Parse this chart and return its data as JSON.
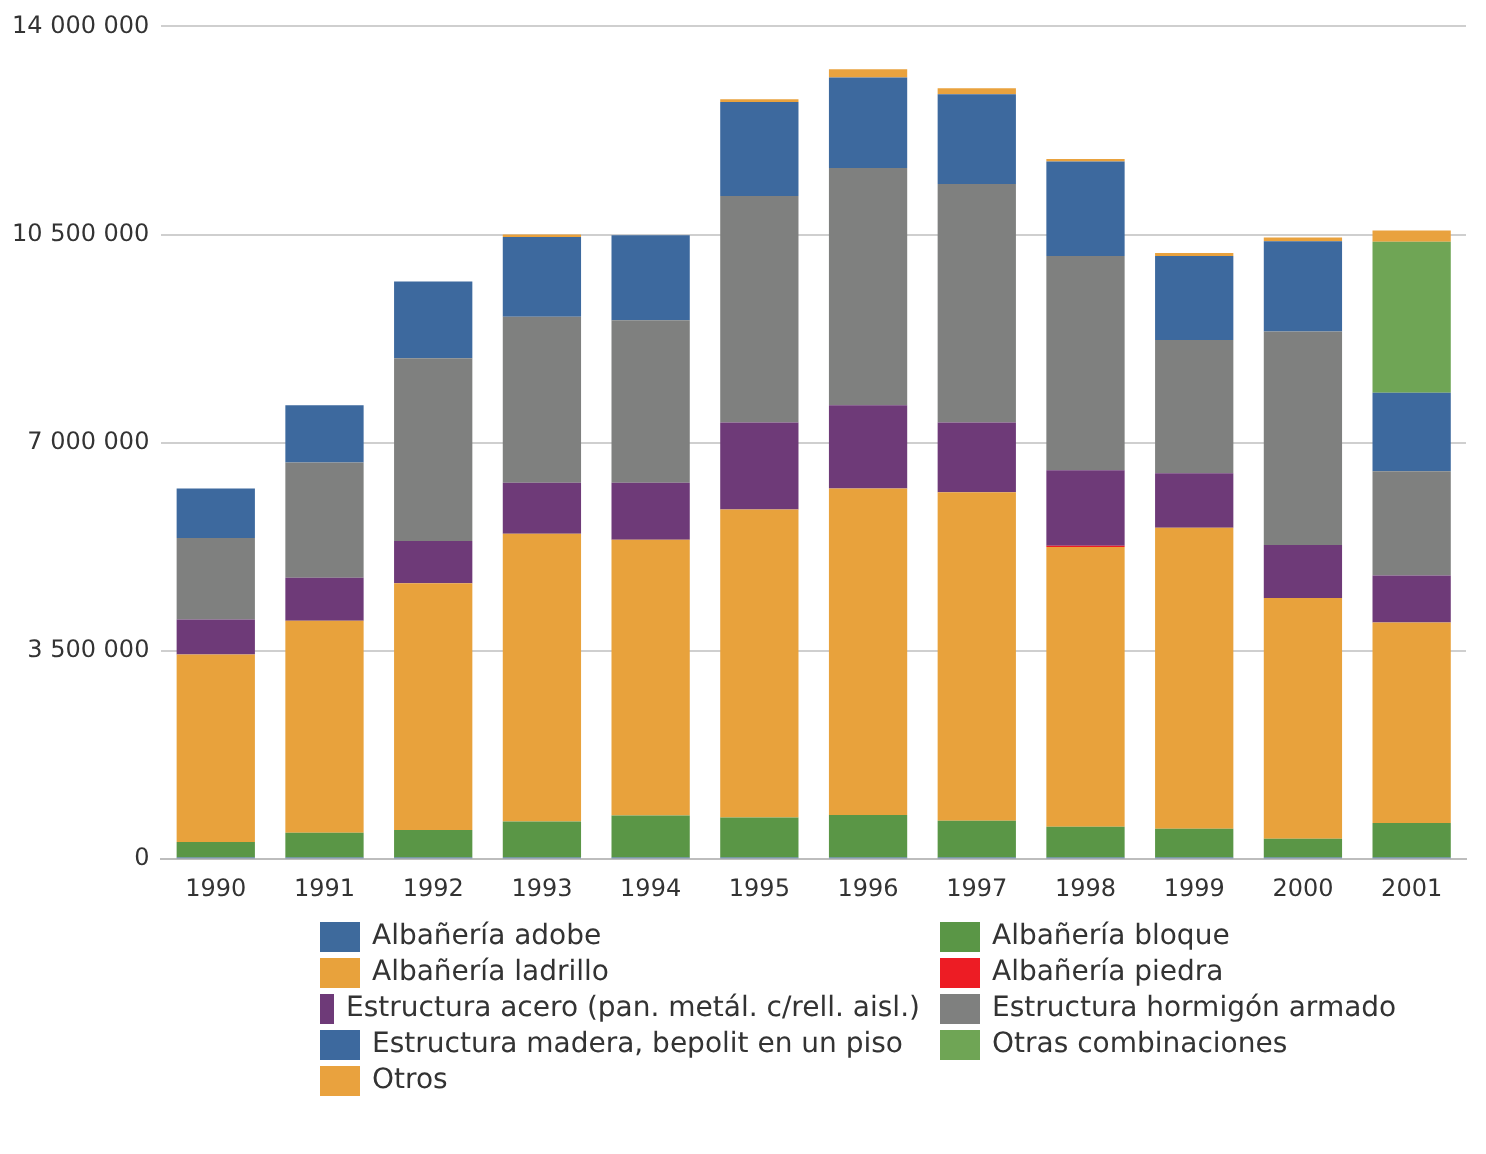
{
  "chart_data": {
    "type": "bar",
    "stacked": true,
    "grid": "y",
    "legend": "bottom",
    "categories": [
      "1990",
      "1991",
      "1992",
      "1993",
      "1994",
      "1995",
      "1996",
      "1997",
      "1998",
      "1999",
      "2000",
      "2001"
    ],
    "ylim": [
      0,
      14000000
    ],
    "yticks": [
      {
        "value": 0,
        "label": "0"
      },
      {
        "value": 3500000,
        "label": "3 500 000"
      },
      {
        "value": 7000000,
        "label": "7 000 000"
      },
      {
        "value": 10500000,
        "label": "10 500 000"
      },
      {
        "value": 14000000,
        "label": "14 000 000"
      }
    ],
    "series": [
      {
        "name": "Albañería adobe",
        "color": "#3e6a9c",
        "values": [
          30000,
          30000,
          30000,
          30000,
          30000,
          30000,
          30000,
          30000,
          30000,
          30000,
          30000,
          30000
        ]
      },
      {
        "name": "Albañería bloque",
        "color": "#5a9646",
        "values": [
          260000,
          415000,
          460000,
          605000,
          705000,
          670000,
          715000,
          615000,
          515000,
          480000,
          315000,
          580000
        ]
      },
      {
        "name": "Albañería ladrillo",
        "color": "#e8a23c",
        "values": [
          3150000,
          3565000,
          4150000,
          4835000,
          4635000,
          5180000,
          5485000,
          5525000,
          4705000,
          5060000,
          4045000,
          3370000
        ]
      },
      {
        "name": "Albañería piedra",
        "color": "#ed1c24",
        "values": [
          0,
          0,
          0,
          0,
          0,
          0,
          0,
          0,
          20000,
          0,
          0,
          0
        ]
      },
      {
        "name": "Estructura acero (pan. metál. c/rell. aisl.)",
        "color": "#6e3a78",
        "values": [
          590000,
          720000,
          710000,
          860000,
          960000,
          1460000,
          1400000,
          1170000,
          1270000,
          920000,
          890000,
          790000
        ]
      },
      {
        "name": "Estructura hormigón armado",
        "color": "#7f807f",
        "values": [
          1370000,
          1940000,
          3070000,
          2790000,
          2730000,
          3810000,
          3990000,
          4010000,
          3600000,
          2240000,
          3590000,
          1750000
        ]
      },
      {
        "name": "Estructura madera, bepolit en un piso",
        "color": "#3d699e",
        "values": [
          830000,
          960000,
          1290000,
          1340000,
          1430000,
          1580000,
          1520000,
          1510000,
          1590000,
          1410000,
          1520000,
          1320000
        ]
      },
      {
        "name": "Otras combinaciones",
        "color": "#6fa555",
        "values": [
          0,
          0,
          0,
          0,
          0,
          0,
          0,
          0,
          0,
          0,
          0,
          2540000
        ]
      },
      {
        "name": "Otros",
        "color": "#e9a23e",
        "values": [
          0,
          0,
          0,
          40000,
          0,
          45000,
          140000,
          100000,
          40000,
          50000,
          60000,
          190000
        ]
      }
    ]
  }
}
